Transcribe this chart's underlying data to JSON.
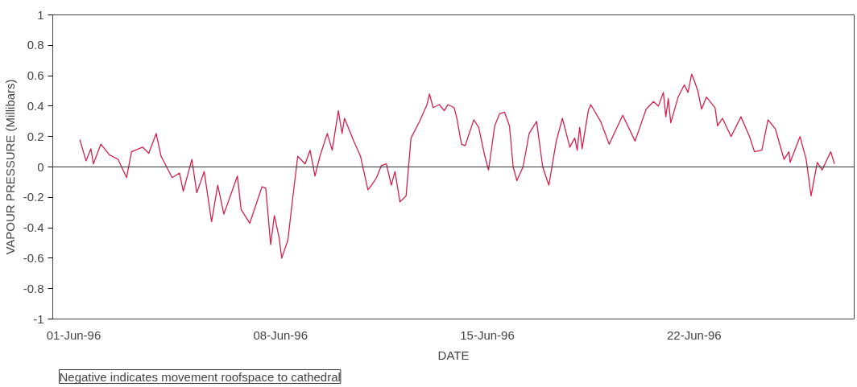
{
  "chart_data": {
    "type": "line",
    "xlabel": "DATE",
    "ylabel": "VAPOUR PRESSURE (Millibars)",
    "annotations": [
      "Negative indicates movement roofspace to cathedral"
    ],
    "x": [
      "1996-06-01T05:00",
      "1996-06-01T10:00",
      "1996-06-01T14:00",
      "1996-06-01T16:00",
      "1996-06-01T22:00",
      "1996-06-02T05:00",
      "1996-06-02T12:00",
      "1996-06-02T19:00",
      "1996-06-02T23:00",
      "1996-06-03T08:00",
      "1996-06-03T13:00",
      "1996-06-03T19:00",
      "1996-06-03T23:00",
      "1996-06-04T08:00",
      "1996-06-04T14:00",
      "1996-06-04T17:00",
      "1996-06-05T00:00",
      "1996-06-05T04:00",
      "1996-06-05T10:00",
      "1996-06-05T16:00",
      "1996-06-05T21:00",
      "1996-06-06T02:00",
      "1996-06-06T13:00",
      "1996-06-06T16:00",
      "1996-06-06T23:00",
      "1996-06-07T09:00",
      "1996-06-07T12:00",
      "1996-06-07T16:00",
      "1996-06-07T19:00",
      "1996-06-07T23:00",
      "1996-06-08T01:00",
      "1996-06-08T06:00",
      "1996-06-08T10:00",
      "1996-06-08T14:00",
      "1996-06-08T20:00",
      "1996-06-09T00:00",
      "1996-06-09T04:00",
      "1996-06-09T08:00",
      "1996-06-09T14:00",
      "1996-06-09T18:00",
      "1996-06-09T23:00",
      "1996-06-10T02:00",
      "1996-06-10T04:00",
      "1996-06-10T11:00",
      "1996-06-10T17:00",
      "1996-06-10T23:00",
      "1996-06-11T02:00",
      "1996-06-11T06:00",
      "1996-06-11T10:00",
      "1996-06-11T14:00",
      "1996-06-11T18:00",
      "1996-06-11T21:00",
      "1996-06-12T01:00",
      "1996-06-12T06:00",
      "1996-06-12T10:00",
      "1996-06-12T17:00",
      "1996-06-12T23:00",
      "1996-06-13T01:00",
      "1996-06-13T04:00",
      "1996-06-13T09:00",
      "1996-06-13T13:00",
      "1996-06-13T16:00",
      "1996-06-13T21:00",
      "1996-06-13T23:00",
      "1996-06-14T03:00",
      "1996-06-14T06:00",
      "1996-06-14T13:00",
      "1996-06-14T17:00",
      "1996-06-14T22:00",
      "1996-06-15T01:00",
      "1996-06-15T06:00",
      "1996-06-15T10:00",
      "1996-06-15T14:00",
      "1996-06-15T18:00",
      "1996-06-15T21:00",
      "1996-06-16T00:00",
      "1996-06-16T05:00",
      "1996-06-16T10:00",
      "1996-06-16T16:00",
      "1996-06-16T21:00",
      "1996-06-17T02:00",
      "1996-06-17T08:00",
      "1996-06-17T13:00",
      "1996-06-17T19:00",
      "1996-06-17T23:00",
      "1996-06-18T01:00",
      "1996-06-18T03:00",
      "1996-06-18T05:00",
      "1996-06-18T10:00",
      "1996-06-18T12:00",
      "1996-06-18T20:00",
      "1996-06-19T03:00",
      "1996-06-19T14:00",
      "1996-06-20T00:00",
      "1996-06-20T09:00",
      "1996-06-20T15:00",
      "1996-06-20T19:00",
      "1996-06-20T23:00",
      "1996-06-21T01:00",
      "1996-06-21T03:00",
      "1996-06-21T05:00",
      "1996-06-21T11:00",
      "1996-06-21T16:00",
      "1996-06-21T19:00",
      "1996-06-21T22:00",
      "1996-06-22T00:00",
      "1996-06-22T03:00",
      "1996-06-22T06:00",
      "1996-06-22T10:00",
      "1996-06-22T17:00",
      "1996-06-22T19:00",
      "1996-06-22T23:00",
      "1996-06-23T06:00",
      "1996-06-23T14:00",
      "1996-06-23T21:00",
      "1996-06-24T01:00",
      "1996-06-24T07:00",
      "1996-06-24T12:00",
      "1996-06-24T18:00",
      "1996-06-25T01:00",
      "1996-06-25T05:00",
      "1996-06-25T06:00",
      "1996-06-25T14:00",
      "1996-06-25T19:00",
      "1996-06-25T23:00",
      "1996-06-26T04:00",
      "1996-06-26T08:00",
      "1996-06-26T12:00",
      "1996-06-26T15:00",
      "1996-06-26T18:00"
    ],
    "series": [
      {
        "color": "#d6204e",
        "values": [
          0.18,
          0.04,
          0.12,
          0.02,
          0.15,
          0.08,
          0.05,
          -0.07,
          0.1,
          0.13,
          0.09,
          0.22,
          0.07,
          -0.07,
          -0.04,
          -0.16,
          0.05,
          -0.17,
          -0.03,
          -0.36,
          -0.12,
          -0.31,
          -0.06,
          -0.28,
          -0.37,
          -0.13,
          -0.14,
          -0.51,
          -0.32,
          -0.47,
          -0.6,
          -0.48,
          -0.2,
          0.07,
          0.02,
          0.11,
          -0.06,
          0.07,
          0.22,
          0.11,
          0.37,
          0.22,
          0.32,
          0.18,
          0.07,
          -0.15,
          -0.12,
          -0.07,
          0.01,
          0.02,
          -0.12,
          -0.03,
          -0.23,
          -0.19,
          0.19,
          0.3,
          0.41,
          0.48,
          0.39,
          0.41,
          0.37,
          0.41,
          0.39,
          0.33,
          0.15,
          0.14,
          0.31,
          0.26,
          0.07,
          -0.02,
          0.27,
          0.35,
          0.36,
          0.27,
          0.0,
          -0.09,
          0.0,
          0.22,
          0.3,
          0.0,
          -0.12,
          0.17,
          0.32,
          0.13,
          0.19,
          0.11,
          0.26,
          0.12,
          0.37,
          0.41,
          0.3,
          0.15,
          0.34,
          0.17,
          0.38,
          0.43,
          0.4,
          0.49,
          0.33,
          0.45,
          0.29,
          0.46,
          0.54,
          0.49,
          0.61,
          0.57,
          0.5,
          0.38,
          0.46,
          0.39,
          0.27,
          0.32,
          0.2,
          0.33,
          0.2,
          0.1,
          0.11,
          0.31,
          0.25,
          0.05,
          0.1,
          0.03,
          0.2,
          0.05,
          -0.19,
          0.03,
          -0.02,
          0.05,
          0.1,
          0.02
        ]
      }
    ],
    "xlim": [
      "1996-05-31T07:00",
      "1996-06-27T10:00"
    ],
    "xticks": [
      {
        "value": "1996-06-01",
        "label": "01-Jun-96"
      },
      {
        "value": "1996-06-08",
        "label": "08-Jun-96"
      },
      {
        "value": "1996-06-15",
        "label": "15-Jun-96"
      },
      {
        "value": "1996-06-22",
        "label": "22-Jun-96"
      }
    ],
    "ylim": [
      -1,
      1
    ],
    "yticks": [
      -1,
      -0.8,
      -0.6,
      -0.4,
      -0.2,
      0,
      0.2,
      0.4,
      0.6,
      0.8,
      1
    ],
    "ref_lines": [
      {
        "axis": "y",
        "value": 0,
        "color": "#333333"
      }
    ],
    "grid": false
  }
}
